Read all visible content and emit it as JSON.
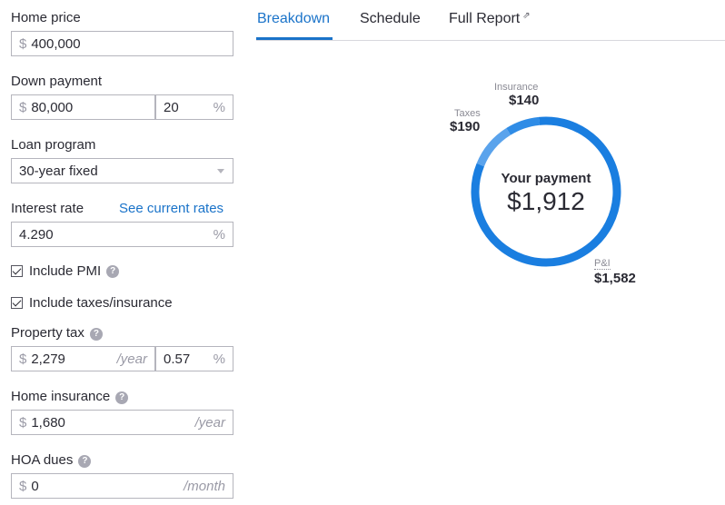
{
  "form": {
    "home_price": {
      "label": "Home price",
      "prefix": "$",
      "value": "400,000"
    },
    "down_payment": {
      "label": "Down payment",
      "prefix": "$",
      "value": "80,000",
      "percent": "20",
      "percent_suffix": "%"
    },
    "loan_program": {
      "label": "Loan program",
      "value": "30-year fixed"
    },
    "interest_rate": {
      "label": "Interest rate",
      "link": "See current rates",
      "value": "4.290",
      "suffix": "%"
    },
    "include_pmi": {
      "label": "Include PMI",
      "checked": true,
      "help": "?"
    },
    "include_taxes": {
      "label": "Include taxes/insurance",
      "checked": true
    },
    "property_tax": {
      "label": "Property tax",
      "help": "?",
      "prefix": "$",
      "value": "2,279",
      "suffix": "/year",
      "percent": "0.57",
      "percent_suffix": "%"
    },
    "home_insurance": {
      "label": "Home insurance",
      "help": "?",
      "prefix": "$",
      "value": "1,680",
      "suffix": "/year"
    },
    "hoa_dues": {
      "label": "HOA dues",
      "help": "?",
      "prefix": "$",
      "value": "0",
      "suffix": "/month"
    }
  },
  "tabs": [
    {
      "label": "Breakdown",
      "active": true
    },
    {
      "label": "Schedule",
      "active": false
    },
    {
      "label": "Full Report",
      "active": false
    }
  ],
  "ext_icon": "external-link-icon",
  "chart_data": {
    "type": "pie",
    "style": "donut",
    "center_title": "Your payment",
    "center_value": "$1,912",
    "slices": [
      {
        "label": "P&I",
        "value": 1582,
        "display": "$1,582",
        "color": "#1a7ee0"
      },
      {
        "label": "Taxes",
        "value": 190,
        "display": "$190",
        "color": "#5aa3ec"
      },
      {
        "label": "Insurance",
        "value": 140,
        "display": "$140",
        "color": "#2f8ce6"
      }
    ]
  }
}
